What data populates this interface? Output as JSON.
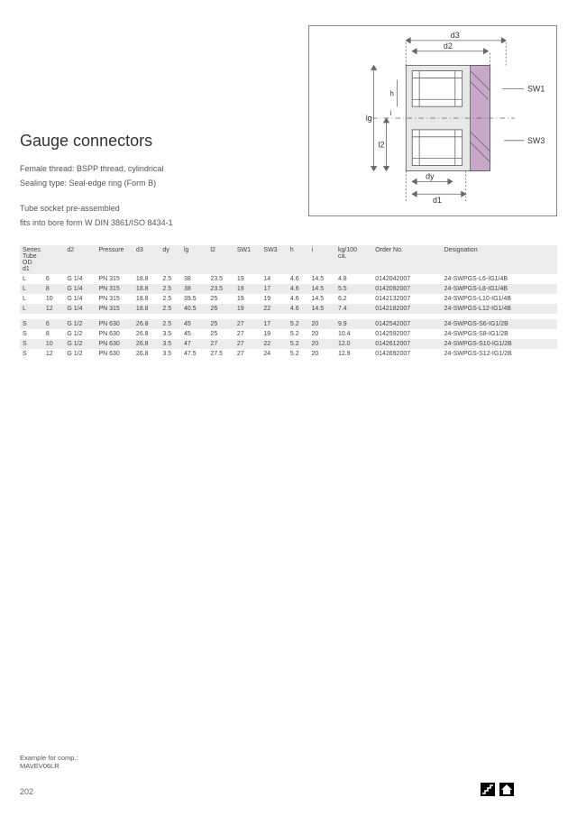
{
  "title": "Gauge connectors",
  "desc": {
    "l1": "Female thread: BSPP thread, cylindrical",
    "l2": "Sealing type: Seal-edge ring (Form B)",
    "l3": "Tube socket pre-assembled",
    "l4": "fits into bore form W DIN 3861/ISO 8434-1"
  },
  "diagram_labels": {
    "d3": "d3",
    "d2": "d2",
    "sw1": "SW1",
    "sw3": "SW3",
    "h": "h",
    "i": "i",
    "lg": "lg",
    "l2": "l2",
    "dy": "dy",
    "d1": "d1"
  },
  "columns": [
    "Series",
    "Tube OD d1",
    "d2",
    "Pressure",
    "d3",
    "dy",
    "lg",
    "l2",
    "SW1",
    "SW3",
    "h",
    "i",
    "kg/100 ca.",
    "Order No.",
    "Designation"
  ],
  "rows_L": [
    [
      "L",
      "6",
      "G 1/4",
      "PN 315",
      "18.8",
      "2.5",
      "38",
      "23.5",
      "19",
      "14",
      "4.6",
      "14.5",
      "4.8",
      "0142042007",
      "24-SWPGS-L6-IG1/4B"
    ],
    [
      "L",
      "8",
      "G 1/4",
      "PN 315",
      "18.8",
      "2.5",
      "38",
      "23.5",
      "19",
      "17",
      "4.6",
      "14.5",
      "5.5",
      "0142092007",
      "24-SWPGS-L8-IG1/4B"
    ],
    [
      "L",
      "10",
      "G 1/4",
      "PN 315",
      "18.8",
      "2.5",
      "39.5",
      "25",
      "19",
      "19",
      "4.6",
      "14.5",
      "6.2",
      "0142132007",
      "24-SWPGS-L10-IG1/4B"
    ],
    [
      "L",
      "12",
      "G 1/4",
      "PN 315",
      "18.8",
      "2.5",
      "40.5",
      "26",
      "19",
      "22",
      "4.6",
      "14.5",
      "7.4",
      "0142182007",
      "24-SWPGS-L12-IG1/4B"
    ]
  ],
  "rows_S": [
    [
      "S",
      "6",
      "G 1/2",
      "PN 630",
      "26.8",
      "2.5",
      "45",
      "25",
      "27",
      "17",
      "5.2",
      "20",
      "9.9",
      "0142542007",
      "24-SWPGS-S6-IG1/2B"
    ],
    [
      "S",
      "8",
      "G 1/2",
      "PN 630",
      "26.8",
      "3.5",
      "45",
      "25",
      "27",
      "19",
      "5.2",
      "20",
      "10.4",
      "0142592007",
      "24-SWPGS-S8-IG1/2B"
    ],
    [
      "S",
      "10",
      "G 1/2",
      "PN 630",
      "26.8",
      "3.5",
      "47",
      "27",
      "27",
      "22",
      "5.2",
      "20",
      "12.0",
      "0142612007",
      "24-SWPGS-S10-IG1/2B"
    ],
    [
      "S",
      "12",
      "G 1/2",
      "PN 630",
      "26.8",
      "3.5",
      "47.5",
      "27.5",
      "27",
      "24",
      "5.2",
      "20",
      "12.9",
      "0142692007",
      "24-SWPGS-S12-IG1/2B"
    ]
  ],
  "footnote": {
    "l1": "Example for comp.:",
    "l2": "MAVEV06LR"
  },
  "page_num": "202",
  "colors": {
    "bg": "#ffffff",
    "row_alt": "#ececec",
    "text": "#444444",
    "border": "#888888"
  }
}
